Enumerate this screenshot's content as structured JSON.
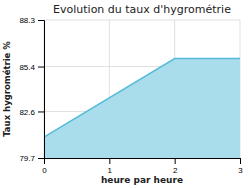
{
  "chart_data": {
    "type": "area",
    "title": "Evolution du taux d'hygrométrie",
    "xlabel": "heure par heure",
    "ylabel": "Taux hygrométrie %",
    "x": [
      0,
      2,
      3
    ],
    "values": [
      81.0,
      85.9,
      85.9
    ],
    "xlim": [
      0,
      3
    ],
    "ylim": [
      79.7,
      88.3
    ],
    "xticks": [
      0,
      1,
      2,
      3
    ],
    "yticks": [
      79.7,
      82.6,
      85.4,
      88.3
    ],
    "color": "#55bbd8",
    "grid": true
  }
}
